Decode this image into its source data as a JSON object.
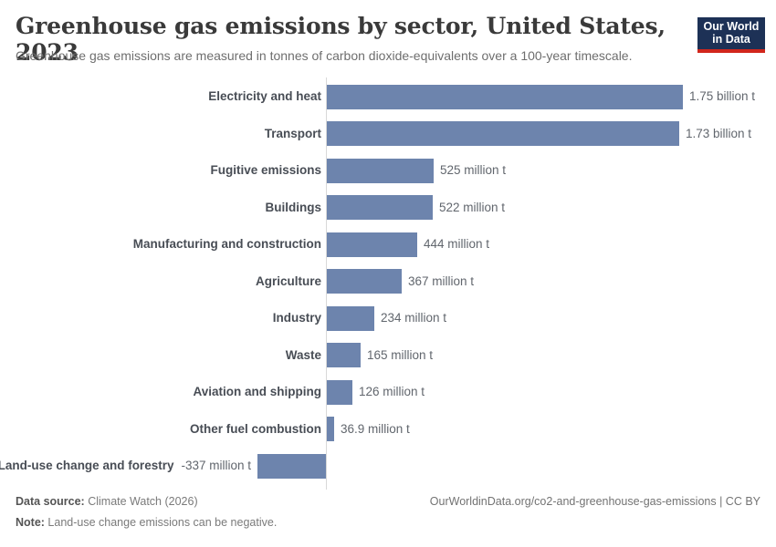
{
  "header": {
    "title": "Greenhouse gas emissions by sector, United States, 2023",
    "subtitle": "Greenhouse gas emissions are measured in tonnes of carbon dioxide-equivalents over a 100-year timescale.",
    "logo": {
      "line1": "Our World",
      "line2": "in Data"
    }
  },
  "chart_data": {
    "type": "bar",
    "orientation": "horizontal",
    "title": "Greenhouse gas emissions by sector, United States, 2023",
    "unit": "tonnes of CO2-equivalents",
    "categories": [
      "Electricity and heat",
      "Transport",
      "Fugitive emissions",
      "Buildings",
      "Manufacturing and construction",
      "Agriculture",
      "Industry",
      "Waste",
      "Aviation and shipping",
      "Other fuel combustion",
      "Land-use change and forestry"
    ],
    "values_million_t": [
      1750,
      1730,
      525,
      522,
      444,
      367,
      234,
      165,
      126,
      36.9,
      -337
    ],
    "value_labels": [
      "1.75 billion t",
      "1.73 billion t",
      "525 million t",
      "522 million t",
      "444 million t",
      "367 million t",
      "234 million t",
      "165 million t",
      "126 million t",
      "36.9 million t",
      "-337 million t"
    ],
    "xlim_million_t": [
      -400,
      1800
    ],
    "grid": false,
    "legend": false
  },
  "colors": {
    "bar": "#6d84ad",
    "axis_line": "#d8d8d8",
    "logo_bg": "#1d3156",
    "logo_accent": "#d1261c"
  },
  "footer": {
    "source_label": "Data source:",
    "source_value": " Climate Watch (2026)",
    "note_label": "Note:",
    "note_value": " Land-use change emissions can be negative.",
    "link": "OurWorldinData.org/co2-and-greenhouse-gas-emissions | CC BY"
  }
}
